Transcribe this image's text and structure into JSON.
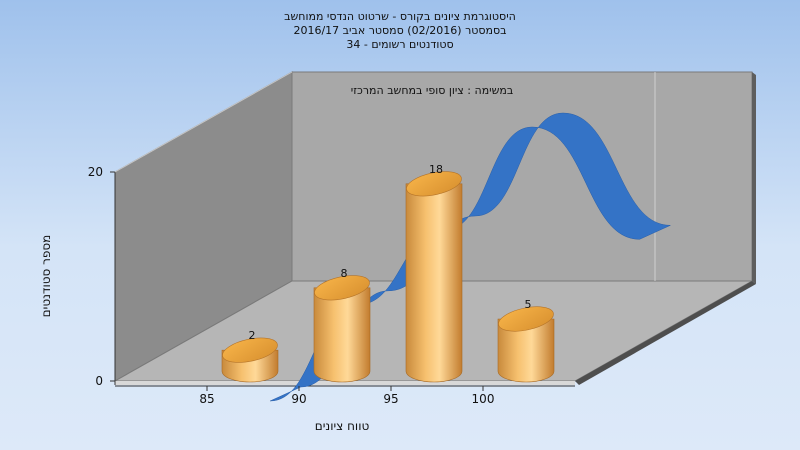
{
  "chart_data": {
    "type": "bar",
    "title_lines": [
      "היסטוגרמת ציונים בקורס - שרטוט הנדסי ממוחשב",
      "בסמסטר  (02/2016)  סמסטר אביב 2016/17",
      "סטודנטים רשומים - 34"
    ],
    "annotation": "במשימה : ציון סופי במחשב המרכזי",
    "xlabel": "טווח ציונים",
    "ylabel": "מספר סטודנטים",
    "categories": [
      "85",
      "90",
      "95",
      "100"
    ],
    "values": [
      2,
      8,
      18,
      5
    ],
    "data_labels": [
      "2",
      "8",
      "18",
      "5"
    ],
    "ylim": [
      0,
      20
    ],
    "yticks": [
      "0",
      "20"
    ],
    "curve": {
      "type": "line",
      "values": [
        0,
        6,
        14,
        25,
        13
      ]
    },
    "colors": {
      "bar_light": "#ffd890",
      "bar_mid": "#f3b25c",
      "bar_dark": "#c17a2c",
      "curve": "#3473c6",
      "curve_light": "#4e8ee0",
      "back_wall": "#a6a6a6",
      "left_wall": "#8e8e8e",
      "floor": "#b4b4b4"
    },
    "grid": true
  }
}
